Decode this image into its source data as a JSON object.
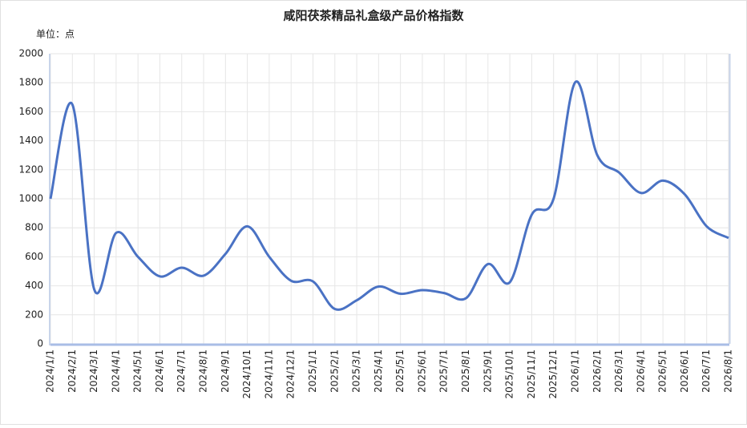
{
  "chart_data": {
    "type": "line",
    "title": "咸阳茯茶精品礼盒级产品价格指数",
    "unit_label": "单位：点",
    "categories": [
      "2024/1/1",
      "2024/2/1",
      "2024/3/1",
      "2024/4/1",
      "2024/5/1",
      "2024/6/1",
      "2024/7/1",
      "2024/8/1",
      "2024/9/1",
      "2024/10/1",
      "2024/11/1",
      "2024/12/1",
      "2025/1/1",
      "2025/2/1",
      "2025/3/1",
      "2025/4/1",
      "2025/5/1",
      "2025/6/1",
      "2025/7/1",
      "2025/8/1",
      "2025/9/1",
      "2025/10/1",
      "2025/11/1",
      "2025/12/1",
      "2026/1/1",
      "2026/2/1",
      "2026/3/1",
      "2026/4/1",
      "2026/5/1",
      "2026/6/1",
      "2026/7/1",
      "2026/8/1"
    ],
    "series": [
      {
        "color": "#4a72c4",
        "values": [
          1000,
          1650,
          375,
          765,
          600,
          465,
          525,
          470,
          620,
          810,
          600,
          435,
          430,
          240,
          300,
          395,
          345,
          370,
          350,
          315,
          550,
          425,
          890,
          1000,
          1805,
          1300,
          1180,
          1040,
          1125,
          1030,
          810,
          730
        ]
      }
    ],
    "ylim": [
      0,
      2000
    ],
    "yticks": [
      0,
      200,
      400,
      600,
      800,
      1000,
      1200,
      1400,
      1600,
      1800,
      2000
    ],
    "grid": true,
    "smooth": true
  }
}
